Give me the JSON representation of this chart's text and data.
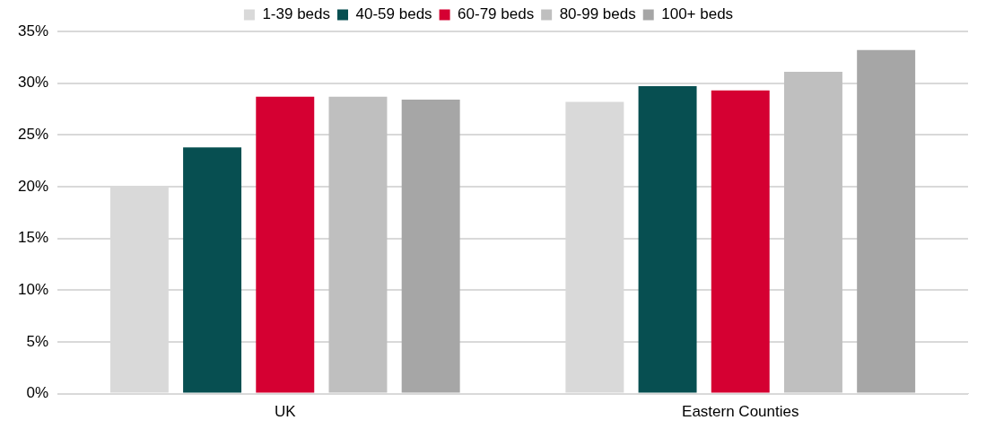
{
  "chart_data": {
    "type": "bar",
    "categories": [
      "UK",
      "Eastern Counties"
    ],
    "series": [
      {
        "name": "1-39 beds",
        "color": "#d9d9d9",
        "values": [
          20.0,
          28.2
        ]
      },
      {
        "name": "40-59 beds",
        "color": "#074f51",
        "values": [
          23.8,
          29.7
        ]
      },
      {
        "name": "60-79 beds",
        "color": "#d50032",
        "values": [
          28.7,
          29.3
        ]
      },
      {
        "name": "80-99 beds",
        "color": "#bfbfbf",
        "values": [
          28.7,
          31.1
        ]
      },
      {
        "name": "100+ beds",
        "color": "#a6a6a6",
        "values": [
          28.4,
          33.2
        ]
      }
    ],
    "ylim": [
      0,
      35
    ],
    "yticks": [
      {
        "value": 0,
        "label": "0%"
      },
      {
        "value": 5,
        "label": "5%"
      },
      {
        "value": 10,
        "label": "10%"
      },
      {
        "value": 15,
        "label": "15%"
      },
      {
        "value": 20,
        "label": "20%"
      },
      {
        "value": 25,
        "label": "25%"
      },
      {
        "value": 30,
        "label": "30%"
      },
      {
        "value": 35,
        "label": "35%"
      }
    ],
    "grid": "y",
    "legend": "top"
  }
}
